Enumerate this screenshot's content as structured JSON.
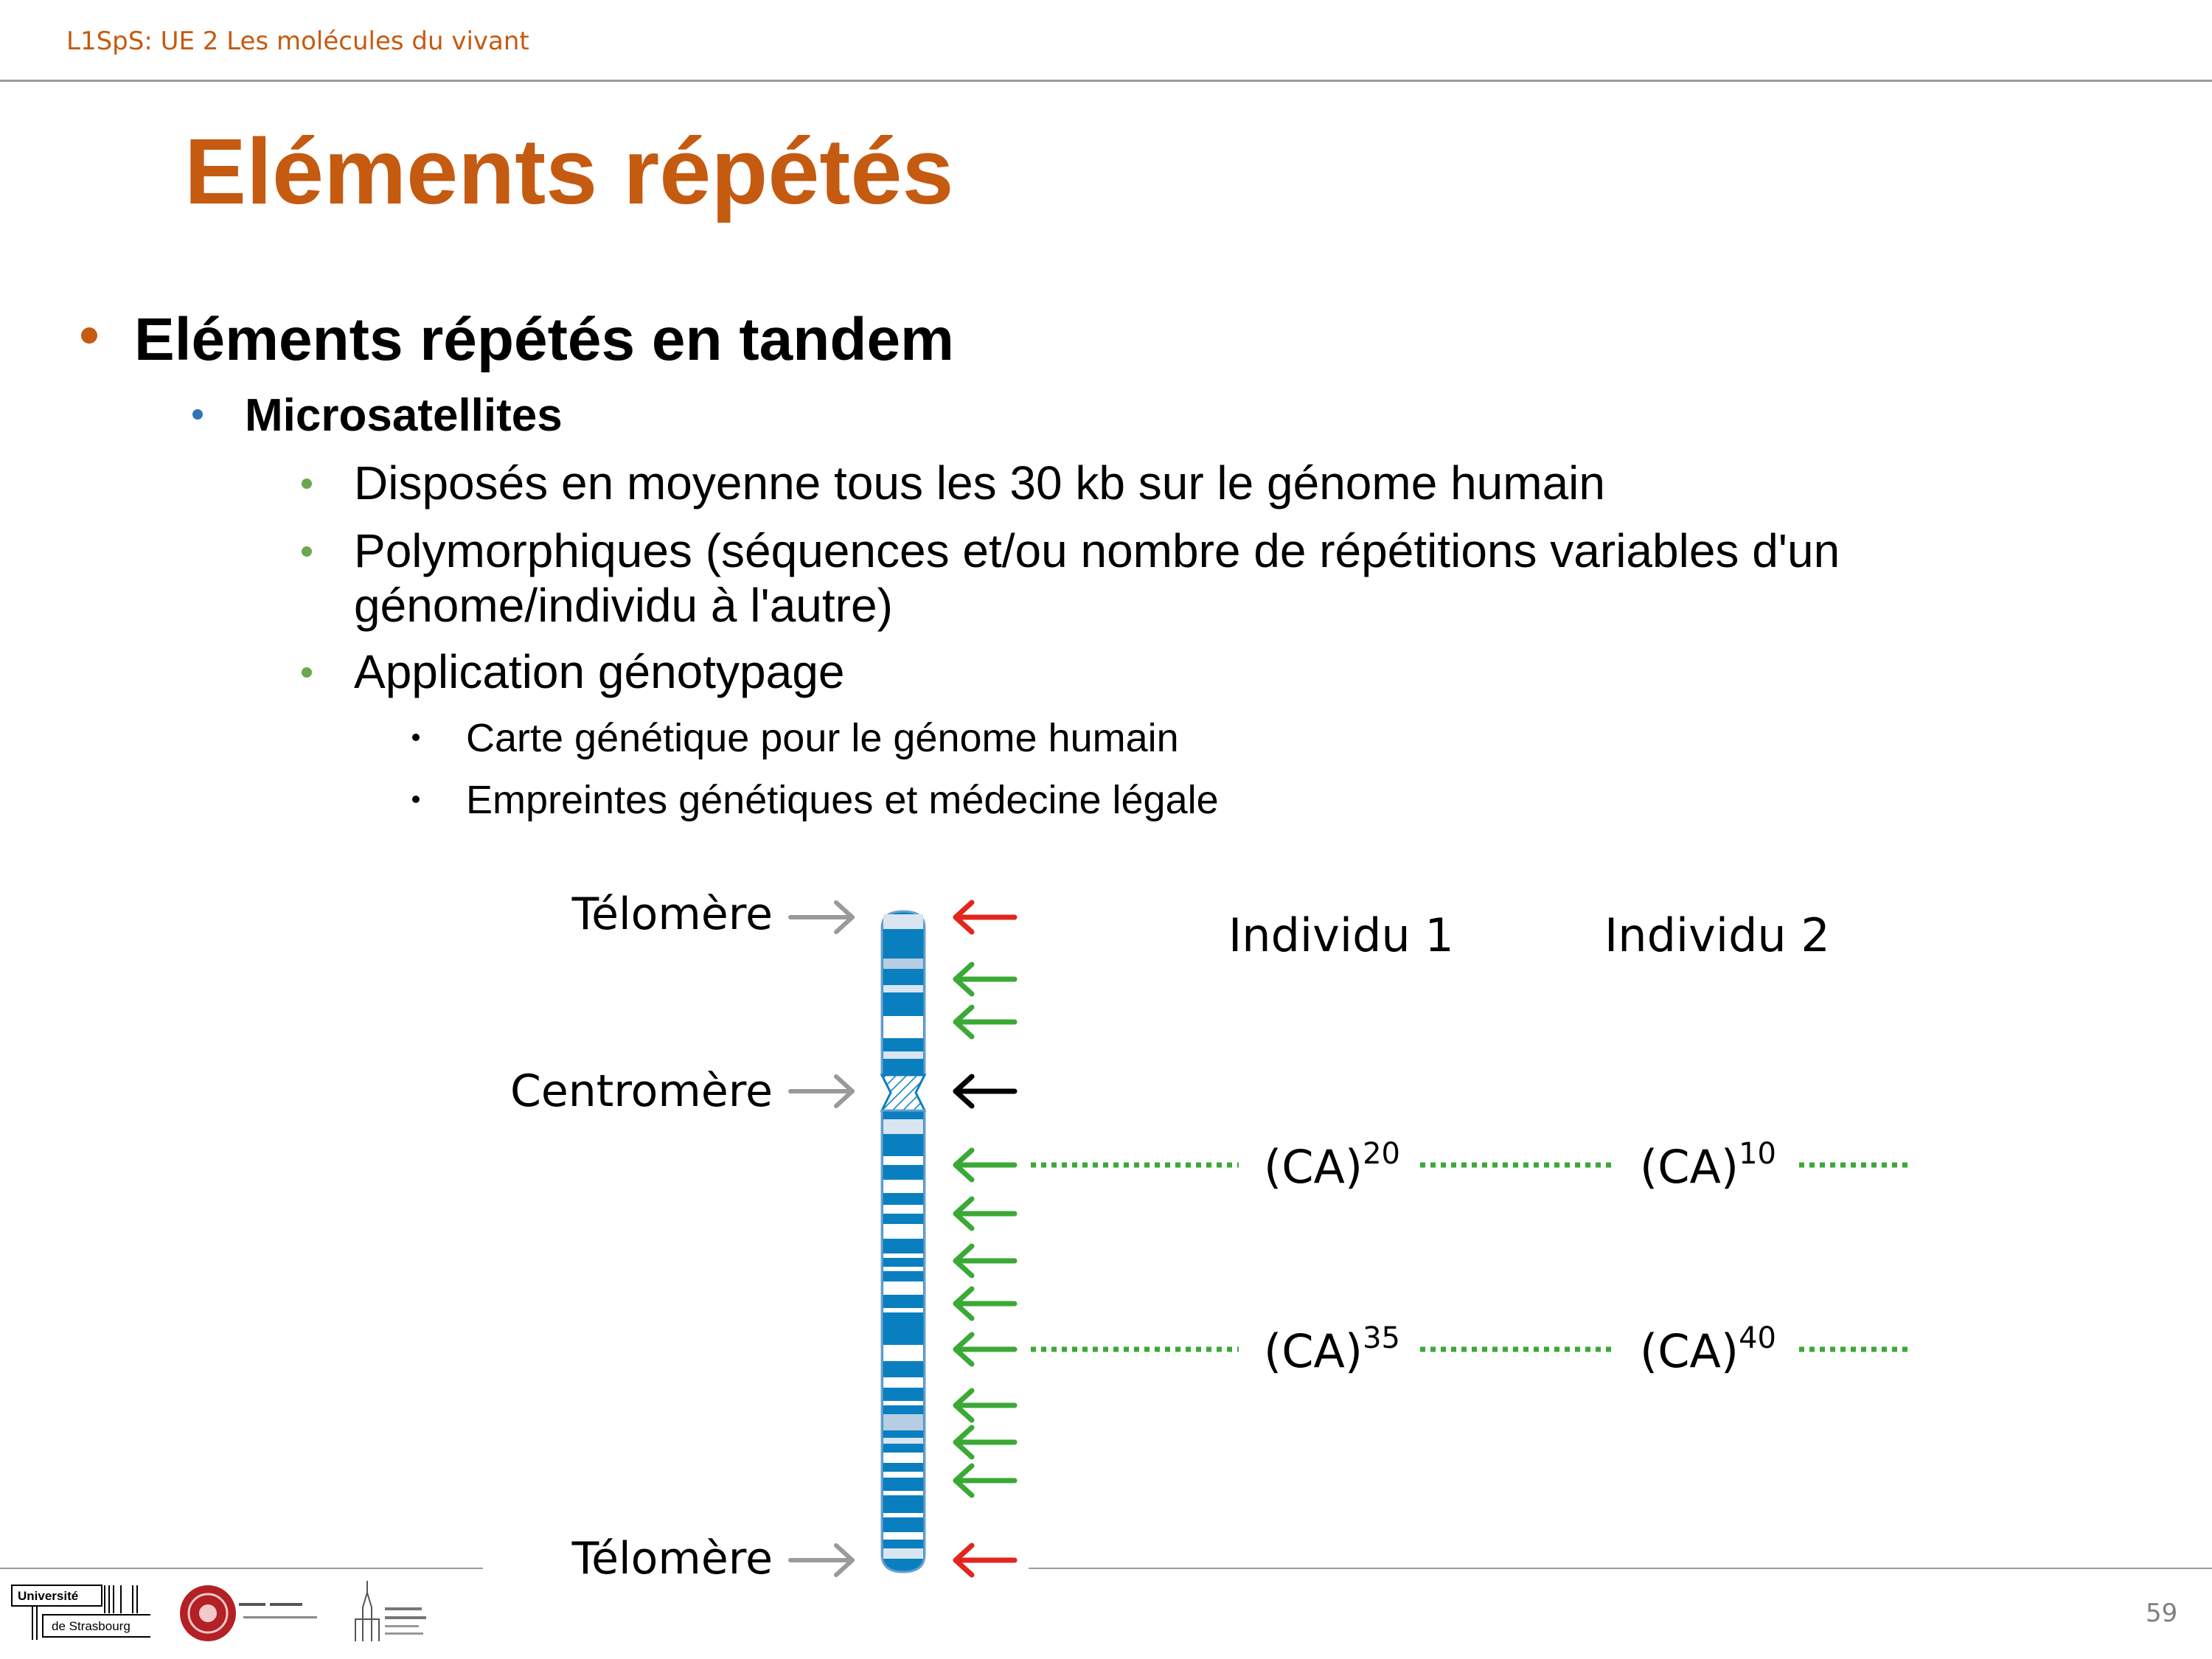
{
  "header": {
    "course": "L1SpS: UE 2 Les molécules du vivant"
  },
  "title": "Eléments répétés",
  "bullets": {
    "level1": "Eléments répétés en tandem",
    "level2": "Microsatellites",
    "level3": [
      "Disposés en moyenne tous les 30 kb sur le génome humain",
      "Polymorphiques (séquences et/ou nombre de répétitions variables d'un",
      "génome/individu à l'autre)",
      "Application génotypage"
    ],
    "level4": [
      "Carte génétique pour le génome humain",
      "Empreintes génétiques et médecine légale"
    ]
  },
  "diagram": {
    "labels": {
      "telomere_top": "Télomère",
      "centromere": "Centromère",
      "telomere_bottom": "Télomère",
      "individu1": "Individu 1",
      "individu2": "Individu 2"
    },
    "repeats": {
      "row1": {
        "ind1_base": "(CA)",
        "ind1_exp": "20",
        "ind2_base": "(CA)",
        "ind2_exp": "10"
      },
      "row2": {
        "ind1_base": "(CA)",
        "ind1_exp": "35",
        "ind2_base": "(CA)",
        "ind2_exp": "40"
      }
    },
    "colors": {
      "chromosome": "#0a7fc0",
      "chromosome_light": "#b7cde3",
      "telomere_arrow": "#e2261c",
      "microsatellite_arrow": "#3aa935",
      "centromere_arrow": "#000000",
      "label_arrow": "#9a9a9a"
    }
  },
  "logos": {
    "universite": "Université",
    "strasbourg": "de Strasbourg"
  },
  "page_number": "59"
}
